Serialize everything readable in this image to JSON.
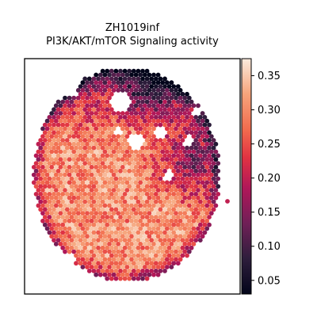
{
  "chart_data": {
    "type": "scatter",
    "title": "ZH1019inf",
    "subtitle": "PI3K/AKT/mTOR Signaling activity",
    "xlabel": "",
    "ylabel": "",
    "colorbar": {
      "colormap": "rocket",
      "range": [
        0.03,
        0.375
      ],
      "ticks": [
        "0.05",
        "0.10",
        "0.15",
        "0.20",
        "0.25",
        "0.30",
        "0.35"
      ],
      "tick_values": [
        0.05,
        0.1,
        0.15,
        0.2,
        0.25,
        0.3,
        0.35
      ],
      "position": "right"
    },
    "grid": false,
    "axes_ticks": false,
    "value_pattern": "high activity (~0.25–0.37) across the lower-left tissue body; lower activity (~0.05–0.18) along the upper and right edges"
  }
}
